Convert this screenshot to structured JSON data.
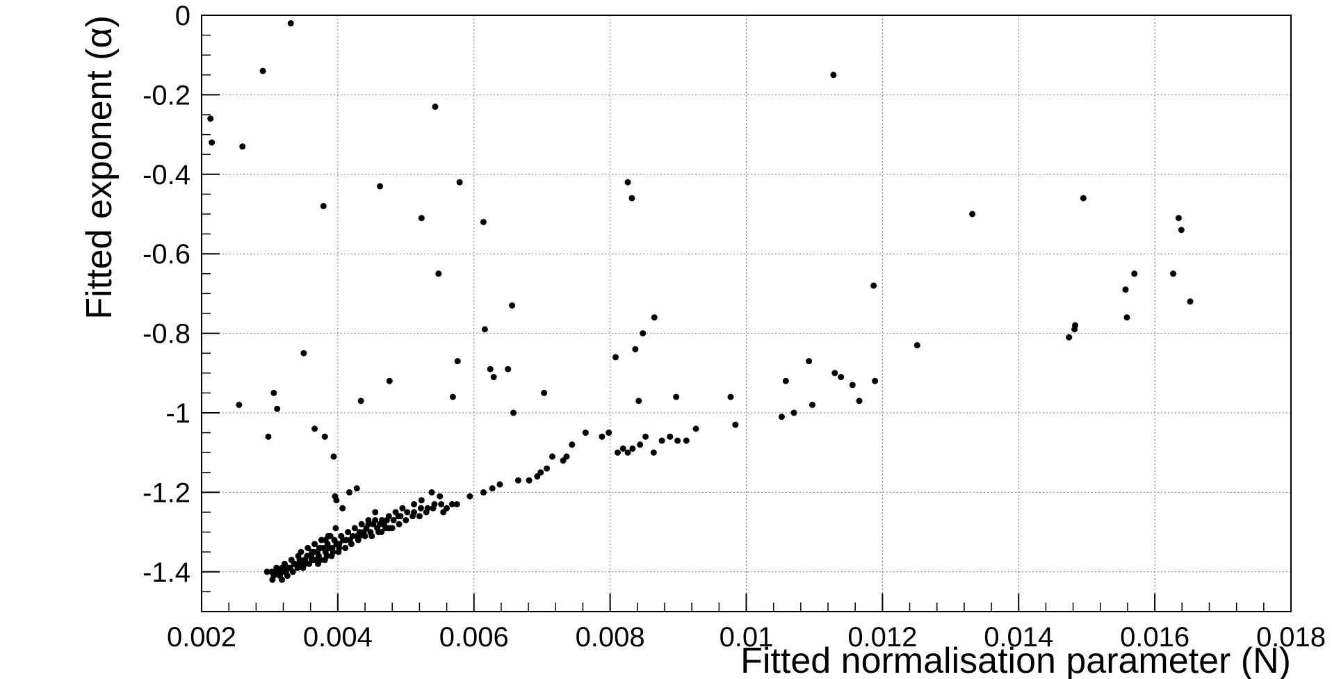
{
  "chart_data": {
    "type": "scatter",
    "title": "",
    "xlabel": "Fitted normalisation parameter (N)",
    "ylabel": "Fitted exponent (α)",
    "xlim": [
      0.002,
      0.018
    ],
    "ylim": [
      -1.5,
      0
    ],
    "grid": true,
    "marker_color": "#000000",
    "x_ticks": [
      0.002,
      0.004,
      0.006,
      0.008,
      0.01,
      0.012,
      0.014,
      0.016,
      0.018
    ],
    "x_tick_labels": [
      "0.002",
      "0.004",
      "0.006",
      "0.008",
      "0.01",
      "0.012",
      "0.014",
      "0.016",
      "0.018"
    ],
    "y_ticks": [
      0,
      -0.2,
      -0.4,
      -0.6,
      -0.8,
      -1,
      -1.2,
      -1.4
    ],
    "y_tick_labels": [
      "0",
      "-0.2",
      "-0.4",
      "-0.6",
      "-0.8",
      "-1",
      "-1.2",
      "-1.4"
    ],
    "points": [
      [
        0.00213,
        -0.26
      ],
      [
        0.00215,
        -0.32
      ],
      [
        0.00255,
        -0.98
      ],
      [
        0.0026,
        -0.33
      ],
      [
        0.0029,
        -0.14
      ],
      [
        0.00298,
        -1.06
      ],
      [
        0.00306,
        -0.95
      ],
      [
        0.00311,
        -0.99
      ],
      [
        0.00331,
        -0.02
      ],
      [
        0.0035,
        -0.85
      ],
      [
        0.00366,
        -1.04
      ],
      [
        0.00379,
        -0.48
      ],
      [
        0.00381,
        -1.06
      ],
      [
        0.00394,
        -1.11
      ],
      [
        0.00396,
        -1.21
      ],
      [
        0.00398,
        -1.22
      ],
      [
        0.00434,
        -0.97
      ],
      [
        0.00462,
        -0.43
      ],
      [
        0.00476,
        -0.92
      ],
      [
        0.00523,
        -0.51
      ],
      [
        0.00543,
        -0.23
      ],
      [
        0.00548,
        -0.65
      ],
      [
        0.00569,
        -0.96
      ],
      [
        0.00576,
        -0.87
      ],
      [
        0.00579,
        -0.42
      ],
      [
        0.00614,
        -0.52
      ],
      [
        0.00616,
        -0.79
      ],
      [
        0.00624,
        -0.89
      ],
      [
        0.00629,
        -0.91
      ],
      [
        0.0065,
        -0.89
      ],
      [
        0.00656,
        -0.73
      ],
      [
        0.00658,
        -1.0
      ],
      [
        0.00703,
        -0.95
      ],
      [
        0.00808,
        -0.86
      ],
      [
        0.00826,
        -0.42
      ],
      [
        0.00832,
        -0.46
      ],
      [
        0.00837,
        -0.84
      ],
      [
        0.00842,
        -0.97
      ],
      [
        0.00848,
        -0.8
      ],
      [
        0.00865,
        -0.76
      ],
      [
        0.00897,
        -0.96
      ],
      [
        0.00977,
        -0.96
      ],
      [
        0.00984,
        -1.03
      ],
      [
        0.01052,
        -1.01
      ],
      [
        0.01058,
        -0.92
      ],
      [
        0.0107,
        -1.0
      ],
      [
        0.01092,
        -0.87
      ],
      [
        0.01097,
        -0.98
      ],
      [
        0.01128,
        -0.15
      ],
      [
        0.0113,
        -0.9
      ],
      [
        0.01139,
        -0.91
      ],
      [
        0.01156,
        -0.93
      ],
      [
        0.01166,
        -0.97
      ],
      [
        0.01187,
        -0.68
      ],
      [
        0.01189,
        -0.92
      ],
      [
        0.01251,
        -0.83
      ],
      [
        0.01332,
        -0.5
      ],
      [
        0.01474,
        -0.81
      ],
      [
        0.01482,
        -0.79
      ],
      [
        0.01483,
        -0.78
      ],
      [
        0.01495,
        -0.46
      ],
      [
        0.01557,
        -0.69
      ],
      [
        0.01559,
        -0.76
      ],
      [
        0.0157,
        -0.65
      ],
      [
        0.01627,
        -0.65
      ],
      [
        0.01635,
        -0.51
      ],
      [
        0.01639,
        -0.54
      ],
      [
        0.01652,
        -0.72
      ],
      [
        0.00811,
        -1.1
      ],
      [
        0.00819,
        -1.09
      ],
      [
        0.00826,
        -1.1
      ],
      [
        0.00833,
        -1.09
      ],
      [
        0.00844,
        -1.08
      ],
      [
        0.00852,
        -1.06
      ],
      [
        0.00864,
        -1.1
      ],
      [
        0.00876,
        -1.07
      ],
      [
        0.00888,
        -1.06
      ],
      [
        0.00899,
        -1.07
      ],
      [
        0.00912,
        -1.07
      ],
      [
        0.00926,
        -1.04
      ],
      [
        0.00788,
        -1.06
      ],
      [
        0.00798,
        -1.05
      ],
      [
        0.00764,
        -1.05
      ],
      [
        0.00744,
        -1.08
      ],
      [
        0.00736,
        -1.11
      ],
      [
        0.00731,
        -1.12
      ],
      [
        0.00715,
        -1.11
      ],
      [
        0.00707,
        -1.14
      ],
      [
        0.00698,
        -1.15
      ],
      [
        0.00693,
        -1.16
      ],
      [
        0.00681,
        -1.17
      ],
      [
        0.00665,
        -1.17
      ],
      [
        0.00638,
        -1.18
      ],
      [
        0.00627,
        -1.19
      ],
      [
        0.00614,
        -1.2
      ],
      [
        0.00594,
        -1.21
      ],
      [
        0.00568,
        -1.23
      ],
      [
        0.00575,
        -1.23
      ],
      [
        0.0056,
        -1.24
      ],
      [
        0.00555,
        -1.25
      ],
      [
        0.0055,
        -1.21
      ],
      [
        0.00538,
        -1.2
      ],
      [
        0.00523,
        -1.22
      ],
      [
        0.00512,
        -1.23
      ],
      [
        0.00489,
        -1.26
      ],
      [
        0.00475,
        -1.29
      ],
      [
        0.00464,
        -1.3
      ],
      [
        0.00455,
        -1.25
      ],
      [
        0.00445,
        -1.27
      ],
      [
        0.00432,
        -1.31
      ],
      [
        0.00428,
        -1.19
      ],
      [
        0.00417,
        -1.2
      ],
      [
        0.00407,
        -1.24
      ],
      [
        0.00397,
        -1.29
      ],
      [
        0.00389,
        -1.31
      ],
      [
        0.00382,
        -1.32
      ],
      [
        0.00373,
        -1.34
      ],
      [
        0.00362,
        -1.35
      ],
      [
        0.00351,
        -1.37
      ],
      [
        0.00344,
        -1.38
      ],
      [
        0.00337,
        -1.38
      ],
      [
        0.00327,
        -1.39
      ],
      [
        0.0032,
        -1.4
      ],
      [
        0.00315,
        -1.41
      ],
      [
        0.00309,
        -1.4
      ],
      [
        0.00303,
        -1.4
      ],
      [
        0.00296,
        -1.4
      ],
      [
        0.00304,
        -1.42
      ],
      [
        0.00318,
        -1.42
      ],
      [
        0.00326,
        -1.41
      ],
      [
        0.00334,
        -1.4
      ],
      [
        0.00341,
        -1.39
      ],
      [
        0.00349,
        -1.39
      ],
      [
        0.00358,
        -1.38
      ],
      [
        0.00366,
        -1.37
      ],
      [
        0.00375,
        -1.37
      ],
      [
        0.00384,
        -1.36
      ],
      [
        0.00393,
        -1.35
      ],
      [
        0.00402,
        -1.34
      ],
      [
        0.00411,
        -1.34
      ],
      [
        0.0042,
        -1.33
      ],
      [
        0.0043,
        -1.32
      ],
      [
        0.0044,
        -1.31
      ],
      [
        0.0045,
        -1.31
      ],
      [
        0.0046,
        -1.3
      ],
      [
        0.0047,
        -1.29
      ],
      [
        0.0048,
        -1.29
      ],
      [
        0.0049,
        -1.28
      ],
      [
        0.005,
        -1.27
      ],
      [
        0.0051,
        -1.26
      ],
      [
        0.0052,
        -1.26
      ],
      [
        0.0053,
        -1.25
      ],
      [
        0.0054,
        -1.24
      ],
      [
        0.00355,
        -1.36
      ],
      [
        0.00365,
        -1.35
      ],
      [
        0.00375,
        -1.34
      ],
      [
        0.00385,
        -1.33
      ],
      [
        0.00395,
        -1.32
      ],
      [
        0.00405,
        -1.31
      ],
      [
        0.00415,
        -1.3
      ],
      [
        0.00425,
        -1.29
      ],
      [
        0.00435,
        -1.28
      ],
      [
        0.00445,
        -1.28
      ],
      [
        0.00455,
        -1.27
      ],
      [
        0.00465,
        -1.27
      ],
      [
        0.00475,
        -1.26
      ],
      [
        0.00485,
        -1.25
      ],
      [
        0.00495,
        -1.24
      ],
      [
        0.0031,
        -1.39
      ],
      [
        0.00322,
        -1.38
      ],
      [
        0.00332,
        -1.37
      ],
      [
        0.00342,
        -1.36
      ],
      [
        0.00352,
        -1.38
      ],
      [
        0.00362,
        -1.37
      ],
      [
        0.00372,
        -1.36
      ],
      [
        0.00382,
        -1.35
      ],
      [
        0.00392,
        -1.34
      ],
      [
        0.00402,
        -1.33
      ],
      [
        0.00412,
        -1.32
      ],
      [
        0.00422,
        -1.31
      ],
      [
        0.00432,
        -1.3
      ],
      [
        0.00442,
        -1.29
      ],
      [
        0.00452,
        -1.28
      ],
      [
        0.00462,
        -1.28
      ],
      [
        0.00472,
        -1.27
      ],
      [
        0.00482,
        -1.27
      ],
      [
        0.00492,
        -1.26
      ],
      [
        0.00502,
        -1.25
      ],
      [
        0.00512,
        -1.25
      ],
      [
        0.00522,
        -1.24
      ],
      [
        0.00532,
        -1.24
      ],
      [
        0.00542,
        -1.23
      ],
      [
        0.00552,
        -1.23
      ],
      [
        0.00306,
        -1.41
      ],
      [
        0.00312,
        -1.4
      ],
      [
        0.00318,
        -1.39
      ],
      [
        0.00324,
        -1.4
      ],
      [
        0.0033,
        -1.39
      ],
      [
        0.00336,
        -1.38
      ],
      [
        0.00344,
        -1.37
      ],
      [
        0.00352,
        -1.37
      ],
      [
        0.00361,
        -1.36
      ],
      [
        0.0037,
        -1.35
      ],
      [
        0.00379,
        -1.34
      ],
      [
        0.00388,
        -1.34
      ],
      [
        0.00398,
        -1.33
      ],
      [
        0.00408,
        -1.32
      ],
      [
        0.00418,
        -1.32
      ],
      [
        0.00428,
        -1.31
      ],
      [
        0.00438,
        -1.3
      ],
      [
        0.00448,
        -1.3
      ],
      [
        0.00458,
        -1.29
      ],
      [
        0.00468,
        -1.28
      ],
      [
        0.00346,
        -1.35
      ],
      [
        0.00356,
        -1.34
      ],
      [
        0.00366,
        -1.33
      ],
      [
        0.00376,
        -1.32
      ],
      [
        0.00386,
        -1.31
      ],
      [
        0.00371,
        -1.38
      ],
      [
        0.00381,
        -1.37
      ],
      [
        0.00391,
        -1.36
      ],
      [
        0.00401,
        -1.35
      ],
      [
        0.00411,
        -1.34
      ]
    ]
  }
}
